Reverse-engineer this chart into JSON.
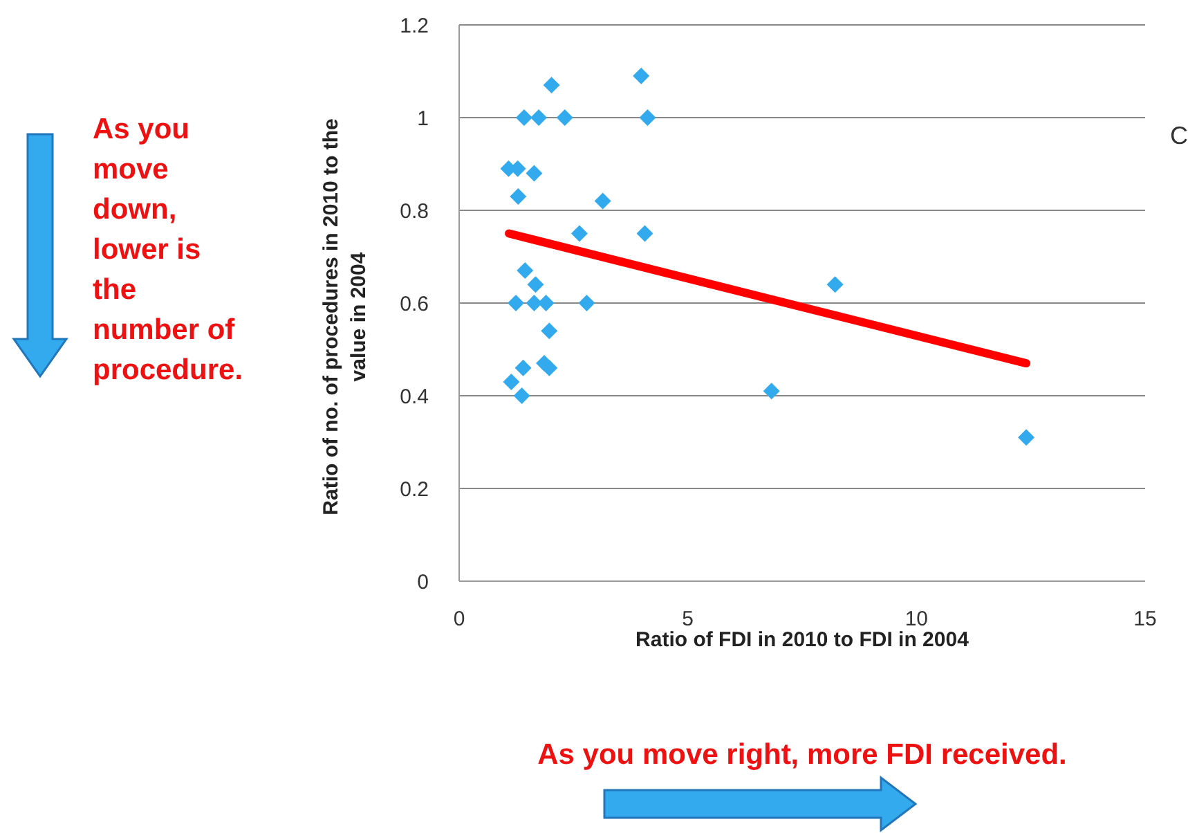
{
  "chart_data": {
    "type": "scatter",
    "xlabel": "Ratio of FDI in 2010 to FDI in 2004",
    "ylabel": "Ratio of no. of procedures in 2010 to the value in 2004",
    "xlim": [
      0,
      15
    ],
    "xticks": [
      0,
      5,
      10,
      15
    ],
    "ylim": [
      0,
      1.2
    ],
    "yticks": [
      {
        "value": 0,
        "label": "0"
      },
      {
        "value": 0.2,
        "label": "0.2"
      },
      {
        "value": 0.4,
        "label": "0.4"
      },
      {
        "value": 0.6,
        "label": "0.6"
      },
      {
        "value": 0.8,
        "label": "0.8"
      },
      {
        "value": 1,
        "label": "1"
      },
      {
        "value": 1.2,
        "label": "1.2"
      }
    ],
    "grid": "y",
    "marker": "diamond",
    "series": [
      {
        "color": "#33aaee",
        "x": [
          2.02,
          3.98,
          1.42,
          1.74,
          2.31,
          4.12,
          1.08,
          1.28,
          1.64,
          1.29,
          3.14,
          2.63,
          4.06,
          1.44,
          1.67,
          1.24,
          1.64,
          1.9,
          2.79,
          1.97,
          1.86,
          1.97,
          1.4,
          1.14,
          1.37,
          8.22,
          6.83,
          12.4
        ],
        "values": [
          1.07,
          1.09,
          1,
          1,
          1,
          1,
          0.89,
          0.89,
          0.88,
          0.83,
          0.82,
          0.75,
          0.75,
          0.67,
          0.64,
          0.6,
          0.6,
          0.6,
          0.6,
          0.54,
          0.47,
          0.46,
          0.46,
          0.43,
          0.4,
          0.64,
          0.41,
          0.31
        ]
      },
      {
        "type": "line",
        "color": "#ff0000",
        "marker": "none",
        "x": [
          1.09,
          12.4
        ],
        "values": [
          0.75,
          0.47
        ]
      }
    ],
    "annotations": [
      "As you move down, lower is the number of procedure.",
      "As you move right, more FDI received.",
      "C"
    ]
  }
}
